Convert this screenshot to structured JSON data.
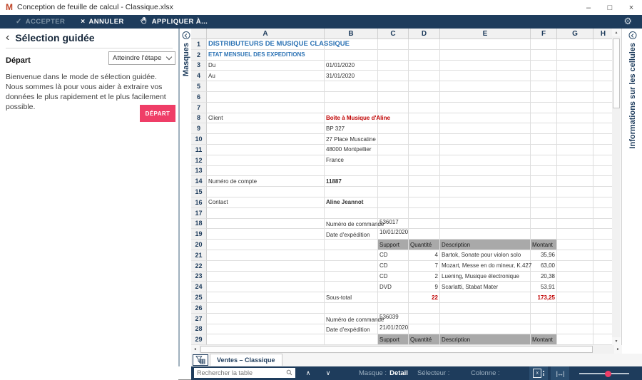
{
  "window": {
    "logo": "M",
    "title": "Conception de feuille de calcul - Classique.xlsx",
    "controls": {
      "minimize": "–",
      "maximize": "□",
      "close": "×"
    }
  },
  "toolbar": {
    "accept": "ACCEPTER",
    "cancel": "ANNULER",
    "apply": "APPLIQUER À..."
  },
  "icons": {
    "check": "✓",
    "close_x": "×",
    "gear": "⚙",
    "back": "‹",
    "chevron_up": "∧",
    "chevron_down": "∨",
    "scroll_up": "▲",
    "scroll_down": "▼",
    "scroll_left": "◄",
    "scroll_right": "►",
    "double_arrow": "↔",
    "x_small": "x"
  },
  "panel": {
    "title": "Sélection guidée",
    "step_label": "Départ",
    "dropdown_value": "Atteindre l'étape",
    "welcome": "Bienvenue dans le mode de sélection guidée. Nous sommes là pour vous aider à extraire vos données le plus rapidement et le plus facilement possible.",
    "start_button": "DÉPART"
  },
  "left_strip": {
    "label": "Masques"
  },
  "right_strip": {
    "label": "Informations sur les cellules"
  },
  "spreadsheet": {
    "columns": [
      "A",
      "B",
      "C",
      "D",
      "E",
      "F",
      "G",
      "H"
    ],
    "rows": [
      {
        "n": 1,
        "cells": {
          "A": [
            "DISTRIBUTEURS DE MUSIQUE CLASSIQUE",
            "t1"
          ]
        }
      },
      {
        "n": 2,
        "cells": {
          "A": [
            "ETAT MENSUEL DES EXPEDITIONS",
            "t2"
          ]
        }
      },
      {
        "n": 3,
        "cells": {
          "A": [
            "Du"
          ],
          "B": [
            "01/01/2020"
          ]
        }
      },
      {
        "n": 4,
        "cells": {
          "A": [
            "Au"
          ],
          "B": [
            "31/01/2020"
          ]
        }
      },
      {
        "n": 5
      },
      {
        "n": 6
      },
      {
        "n": 7
      },
      {
        "n": 8,
        "cells": {
          "A": [
            "Client"
          ],
          "B": [
            "Boîte à Musique d'Aline",
            "rb"
          ]
        }
      },
      {
        "n": 9,
        "cells": {
          "B": [
            "BP 327"
          ]
        }
      },
      {
        "n": 10,
        "cells": {
          "B": [
            "27 Place Muscatine"
          ]
        }
      },
      {
        "n": 11,
        "cells": {
          "B": [
            "48000 Montpellier"
          ]
        }
      },
      {
        "n": 12,
        "cells": {
          "B": [
            "France"
          ]
        }
      },
      {
        "n": 13
      },
      {
        "n": 14,
        "cells": {
          "A": [
            "Numéro de compte"
          ],
          "B": [
            "11887",
            "b"
          ]
        }
      },
      {
        "n": 15
      },
      {
        "n": 16,
        "cells": {
          "A": [
            "Contact"
          ],
          "B": [
            "Aline Jeannot",
            "b"
          ]
        }
      },
      {
        "n": 17
      },
      {
        "n": 18,
        "cells": {
          "B": [
            "Numéro de commande",
            "lb"
          ],
          "C": [
            "536017",
            "vt"
          ]
        }
      },
      {
        "n": 19,
        "cells": {
          "B": [
            "Date d'expédition",
            "lb"
          ],
          "C": [
            "10/01/2020",
            "vt"
          ]
        }
      },
      {
        "n": 20,
        "cells": {
          "C": [
            "Support",
            "band"
          ],
          "D": [
            "Quantité",
            "band"
          ],
          "E": [
            "Description",
            "band"
          ],
          "F": [
            "Montant",
            "band"
          ]
        }
      },
      {
        "n": 21,
        "cells": {
          "C": [
            "CD"
          ],
          "D": [
            "4"
          ],
          "E": [
            "Bartok, Sonate pour violon solo"
          ],
          "F": [
            "35,96"
          ]
        }
      },
      {
        "n": 22,
        "cells": {
          "C": [
            "CD"
          ],
          "D": [
            "7"
          ],
          "E": [
            "Mozart, Messe en do mineur, K.427"
          ],
          "F": [
            "63,00"
          ]
        }
      },
      {
        "n": 23,
        "cells": {
          "C": [
            "CD"
          ],
          "D": [
            "2"
          ],
          "E": [
            "Luening, Musique électronique"
          ],
          "F": [
            "20,38"
          ]
        }
      },
      {
        "n": 24,
        "cells": {
          "C": [
            "DVD"
          ],
          "D": [
            "9"
          ],
          "E": [
            "Scarlatti, Stabat Mater"
          ],
          "F": [
            "53,91"
          ]
        }
      },
      {
        "n": 25,
        "cells": {
          "B": [
            "Sous-total"
          ],
          "D": [
            "22",
            "r"
          ],
          "F": [
            "173,25",
            "r"
          ]
        }
      },
      {
        "n": 26
      },
      {
        "n": 27,
        "cells": {
          "B": [
            "Numéro de commande",
            "lb"
          ],
          "C": [
            "536039",
            "vt"
          ]
        }
      },
      {
        "n": 28,
        "cells": {
          "B": [
            "Date d'expédition",
            "lb"
          ],
          "C": [
            "21/01/2020",
            "vt"
          ]
        }
      },
      {
        "n": 29,
        "cells": {
          "C": [
            "Support",
            "band"
          ],
          "D": [
            "Quantité",
            "band"
          ],
          "E": [
            "Description",
            "band"
          ],
          "F": [
            "Montant",
            "band"
          ]
        }
      }
    ]
  },
  "sheet_tab": {
    "label": "Ventes – Classique"
  },
  "status_bar": {
    "search_placeholder": "Rechercher la table",
    "mask_label": "Masque :",
    "mask_value": "Detail",
    "selector_label": "Sélecteur :",
    "column_label": "Colonne :"
  },
  "colors": {
    "navy": "#1e3c5c",
    "accent_pink": "#ef3e67",
    "cell_title_blue": "#2e74b5",
    "alert_red": "#c00000",
    "band_gray": "#a9a9a9"
  }
}
